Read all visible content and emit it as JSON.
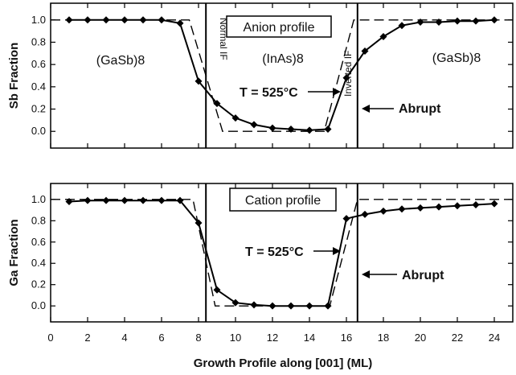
{
  "chart_data": [
    {
      "type": "line",
      "title": "Anion profile",
      "xlabel": "",
      "ylabel": "Sb Fraction",
      "xlim": [
        0,
        25
      ],
      "ylim": [
        -0.15,
        1.15
      ],
      "yticks": [
        "0.0",
        "0.2",
        "0.4",
        "0.6",
        "0.8",
        "1.0"
      ],
      "xticks": [],
      "grid": false,
      "series": [
        {
          "style": "line-diamond-markers",
          "x": [
            1,
            2,
            3,
            4,
            5,
            6,
            7,
            8,
            9,
            10,
            11,
            12,
            13,
            14,
            15,
            16,
            17,
            18,
            19,
            20,
            21,
            22,
            23,
            24
          ],
          "y": [
            1.0,
            1.0,
            1.0,
            1.0,
            1.0,
            1.0,
            0.97,
            0.45,
            0.25,
            0.12,
            0.06,
            0.03,
            0.02,
            0.01,
            0.02,
            0.48,
            0.72,
            0.85,
            0.95,
            0.98,
            0.98,
            0.99,
            0.99,
            1.0
          ]
        },
        {
          "style": "dashed-step",
          "x": [
            0,
            7.5,
            9.3,
            14.8,
            16.4,
            25
          ],
          "y": [
            1.0,
            1.0,
            0.0,
            0.0,
            1.0,
            1.0
          ]
        }
      ],
      "vlines": [
        8.4,
        16.6
      ],
      "annotations": {
        "left_region": "(GaSb)8",
        "middle_region": "(InAs)8",
        "right_region": "(GaSb)8",
        "normal_if": "Normal IF",
        "inverted_if": "Inverted IF",
        "temperature": "T = 525°C",
        "abrupt": "Abrupt"
      }
    },
    {
      "type": "line",
      "title": "Cation profile",
      "xlabel": "Growth Profile along [001] (ML)",
      "ylabel": "Ga Fraction",
      "xlim": [
        0,
        25
      ],
      "ylim": [
        -0.15,
        1.15
      ],
      "yticks": [
        "0.0",
        "0.2",
        "0.4",
        "0.6",
        "0.8",
        "1.0"
      ],
      "xticks": [
        "0",
        "2",
        "4",
        "6",
        "8",
        "10",
        "12",
        "14",
        "16",
        "18",
        "20",
        "22",
        "24"
      ],
      "grid": false,
      "series": [
        {
          "style": "line-diamond-markers",
          "x": [
            1,
            2,
            3,
            4,
            5,
            6,
            7,
            8,
            9,
            10,
            11,
            12,
            13,
            14,
            15,
            16,
            17,
            18,
            19,
            20,
            21,
            22,
            23,
            24
          ],
          "y": [
            0.98,
            0.99,
            0.99,
            0.99,
            0.99,
            0.99,
            0.99,
            0.78,
            0.15,
            0.03,
            0.01,
            0.0,
            0.0,
            0.0,
            0.0,
            0.82,
            0.86,
            0.89,
            0.91,
            0.92,
            0.93,
            0.94,
            0.95,
            0.96
          ]
        },
        {
          "style": "dashed-step",
          "x": [
            0,
            7.7,
            8.9,
            15.1,
            16.6,
            25
          ],
          "y": [
            1.0,
            1.0,
            0.0,
            0.0,
            1.0,
            1.0
          ]
        }
      ],
      "vlines": [
        8.4,
        16.6
      ],
      "annotations": {
        "temperature": "T = 525°C",
        "abrupt": "Abrupt"
      }
    }
  ]
}
